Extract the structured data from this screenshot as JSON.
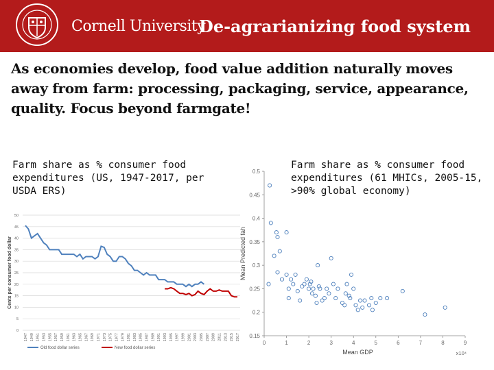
{
  "header": {
    "logo_text": "Cornell University",
    "seal_name": "CORNELL UNIVERSITY",
    "title": "De-agrarianizing food system"
  },
  "intro_text": "As economies develop, food value addition naturally moves away from farm: processing, packaging, service, appearance, quality.  Focus beyond farmgate!",
  "captions": {
    "left": "Farm share as % consumer food expenditures (US, 1947-2017, per USDA ERS)",
    "right": "Farm share as % consumer food expenditures (61 MHICs, 2005-15, >90% global economy)"
  },
  "colors": {
    "header_bg": "#b31b1b",
    "old_series": "#4f81bd",
    "new_series": "#c00000",
    "scatter_marker": "#4f81bd"
  },
  "chart_data": [
    {
      "type": "line",
      "ylabel": "Cents per consumer food dollar",
      "ylim": [
        0,
        50
      ],
      "yticks": [
        0,
        5,
        10,
        15,
        20,
        25,
        30,
        35,
        40,
        45,
        50
      ],
      "grid": true,
      "legend": "bottom",
      "x_tick_labels": [
        "1947",
        "1949",
        "1951",
        "1953",
        "1955",
        "1957",
        "1959",
        "1961",
        "1963",
        "1965",
        "1967",
        "1969",
        "1971",
        "1973",
        "1975",
        "1977",
        "1979",
        "1981",
        "1983",
        "1985",
        "1987",
        "1989",
        "1991",
        "1993",
        "1995",
        "1997",
        "1999",
        "2001",
        "2003",
        "2005",
        "2007",
        "2009",
        "2011",
        "2013",
        "2015",
        "2017"
      ],
      "series": [
        {
          "name": "Old food dollar series",
          "x": [
            1947,
            1948,
            1949,
            1950,
            1951,
            1952,
            1953,
            1954,
            1955,
            1956,
            1957,
            1958,
            1959,
            1960,
            1961,
            1962,
            1963,
            1964,
            1965,
            1966,
            1967,
            1968,
            1969,
            1970,
            1971,
            1972,
            1973,
            1974,
            1975,
            1976,
            1977,
            1978,
            1979,
            1980,
            1981,
            1982,
            1983,
            1984,
            1985,
            1986,
            1987,
            1988,
            1989,
            1990,
            1991,
            1992,
            1993,
            1994,
            1995,
            1996,
            1997,
            1998,
            1999,
            2000,
            2001,
            2002,
            2003,
            2004,
            2005,
            2006
          ],
          "values": [
            45.5,
            44,
            40,
            41,
            42,
            40,
            38,
            37,
            35,
            35,
            35,
            35,
            33,
            33,
            33,
            33,
            33,
            32,
            33,
            31,
            32,
            32,
            32,
            31,
            32,
            36.5,
            36,
            33,
            32,
            30,
            30,
            32,
            32,
            31,
            29,
            28,
            26,
            26,
            25,
            24,
            25,
            24,
            24,
            24,
            22,
            22,
            22,
            21,
            21,
            21,
            20,
            20,
            20,
            19,
            20,
            19,
            20,
            20,
            21,
            20
          ]
        },
        {
          "name": "New food dollar series",
          "x": [
            1993,
            1994,
            1995,
            1996,
            1997,
            1998,
            1999,
            2000,
            2001,
            2002,
            2003,
            2004,
            2005,
            2006,
            2007,
            2008,
            2009,
            2010,
            2011,
            2012,
            2013,
            2014,
            2015,
            2016,
            2017
          ],
          "values": [
            18,
            18,
            18.5,
            18,
            17,
            16,
            16,
            15.5,
            16,
            15,
            15.5,
            17,
            16,
            15.5,
            17,
            18,
            17,
            17,
            17.5,
            17,
            17,
            17,
            15,
            14.5,
            14.5
          ]
        }
      ]
    },
    {
      "type": "scatter",
      "xlabel": "Mean GDP",
      "x_multiplier": "x10⁴",
      "ylabel": "Mean Predicted fah",
      "xlim": [
        0,
        9
      ],
      "ylim": [
        0.15,
        0.5
      ],
      "xticks": [
        0,
        1,
        2,
        3,
        4,
        5,
        6,
        7,
        8,
        9
      ],
      "yticks": [
        0.15,
        0.2,
        0.25,
        0.3,
        0.35,
        0.4,
        0.45,
        0.5
      ],
      "x_units": "x10^4",
      "grid": false,
      "points": [
        [
          0.2,
          0.26
        ],
        [
          0.25,
          0.47
        ],
        [
          0.3,
          0.39
        ],
        [
          0.45,
          0.32
        ],
        [
          0.55,
          0.37
        ],
        [
          0.6,
          0.36
        ],
        [
          0.7,
          0.33
        ],
        [
          0.6,
          0.285
        ],
        [
          0.8,
          0.27
        ],
        [
          1.0,
          0.37
        ],
        [
          1.0,
          0.28
        ],
        [
          1.1,
          0.23
        ],
        [
          1.1,
          0.25
        ],
        [
          1.2,
          0.27
        ],
        [
          1.3,
          0.26
        ],
        [
          1.4,
          0.28
        ],
        [
          1.5,
          0.245
        ],
        [
          1.6,
          0.225
        ],
        [
          1.7,
          0.255
        ],
        [
          1.8,
          0.26
        ],
        [
          1.9,
          0.27
        ],
        [
          2.0,
          0.25
        ],
        [
          2.05,
          0.26
        ],
        [
          2.1,
          0.265
        ],
        [
          2.15,
          0.24
        ],
        [
          2.2,
          0.25
        ],
        [
          2.3,
          0.235
        ],
        [
          2.35,
          0.22
        ],
        [
          2.4,
          0.3
        ],
        [
          2.45,
          0.255
        ],
        [
          2.5,
          0.25
        ],
        [
          2.6,
          0.225
        ],
        [
          2.7,
          0.23
        ],
        [
          2.8,
          0.25
        ],
        [
          2.9,
          0.24
        ],
        [
          3.0,
          0.315
        ],
        [
          3.1,
          0.26
        ],
        [
          3.2,
          0.23
        ],
        [
          3.3,
          0.25
        ],
        [
          3.5,
          0.22
        ],
        [
          3.6,
          0.215
        ],
        [
          3.65,
          0.24
        ],
        [
          3.7,
          0.26
        ],
        [
          3.8,
          0.235
        ],
        [
          3.85,
          0.23
        ],
        [
          3.9,
          0.28
        ],
        [
          4.0,
          0.25
        ],
        [
          4.1,
          0.215
        ],
        [
          4.2,
          0.205
        ],
        [
          4.3,
          0.225
        ],
        [
          4.4,
          0.21
        ],
        [
          4.5,
          0.225
        ],
        [
          4.7,
          0.215
        ],
        [
          4.8,
          0.23
        ],
        [
          4.85,
          0.205
        ],
        [
          5.0,
          0.22
        ],
        [
          5.2,
          0.23
        ],
        [
          5.5,
          0.23
        ],
        [
          6.2,
          0.245
        ],
        [
          7.2,
          0.195
        ],
        [
          8.1,
          0.21
        ]
      ]
    }
  ]
}
